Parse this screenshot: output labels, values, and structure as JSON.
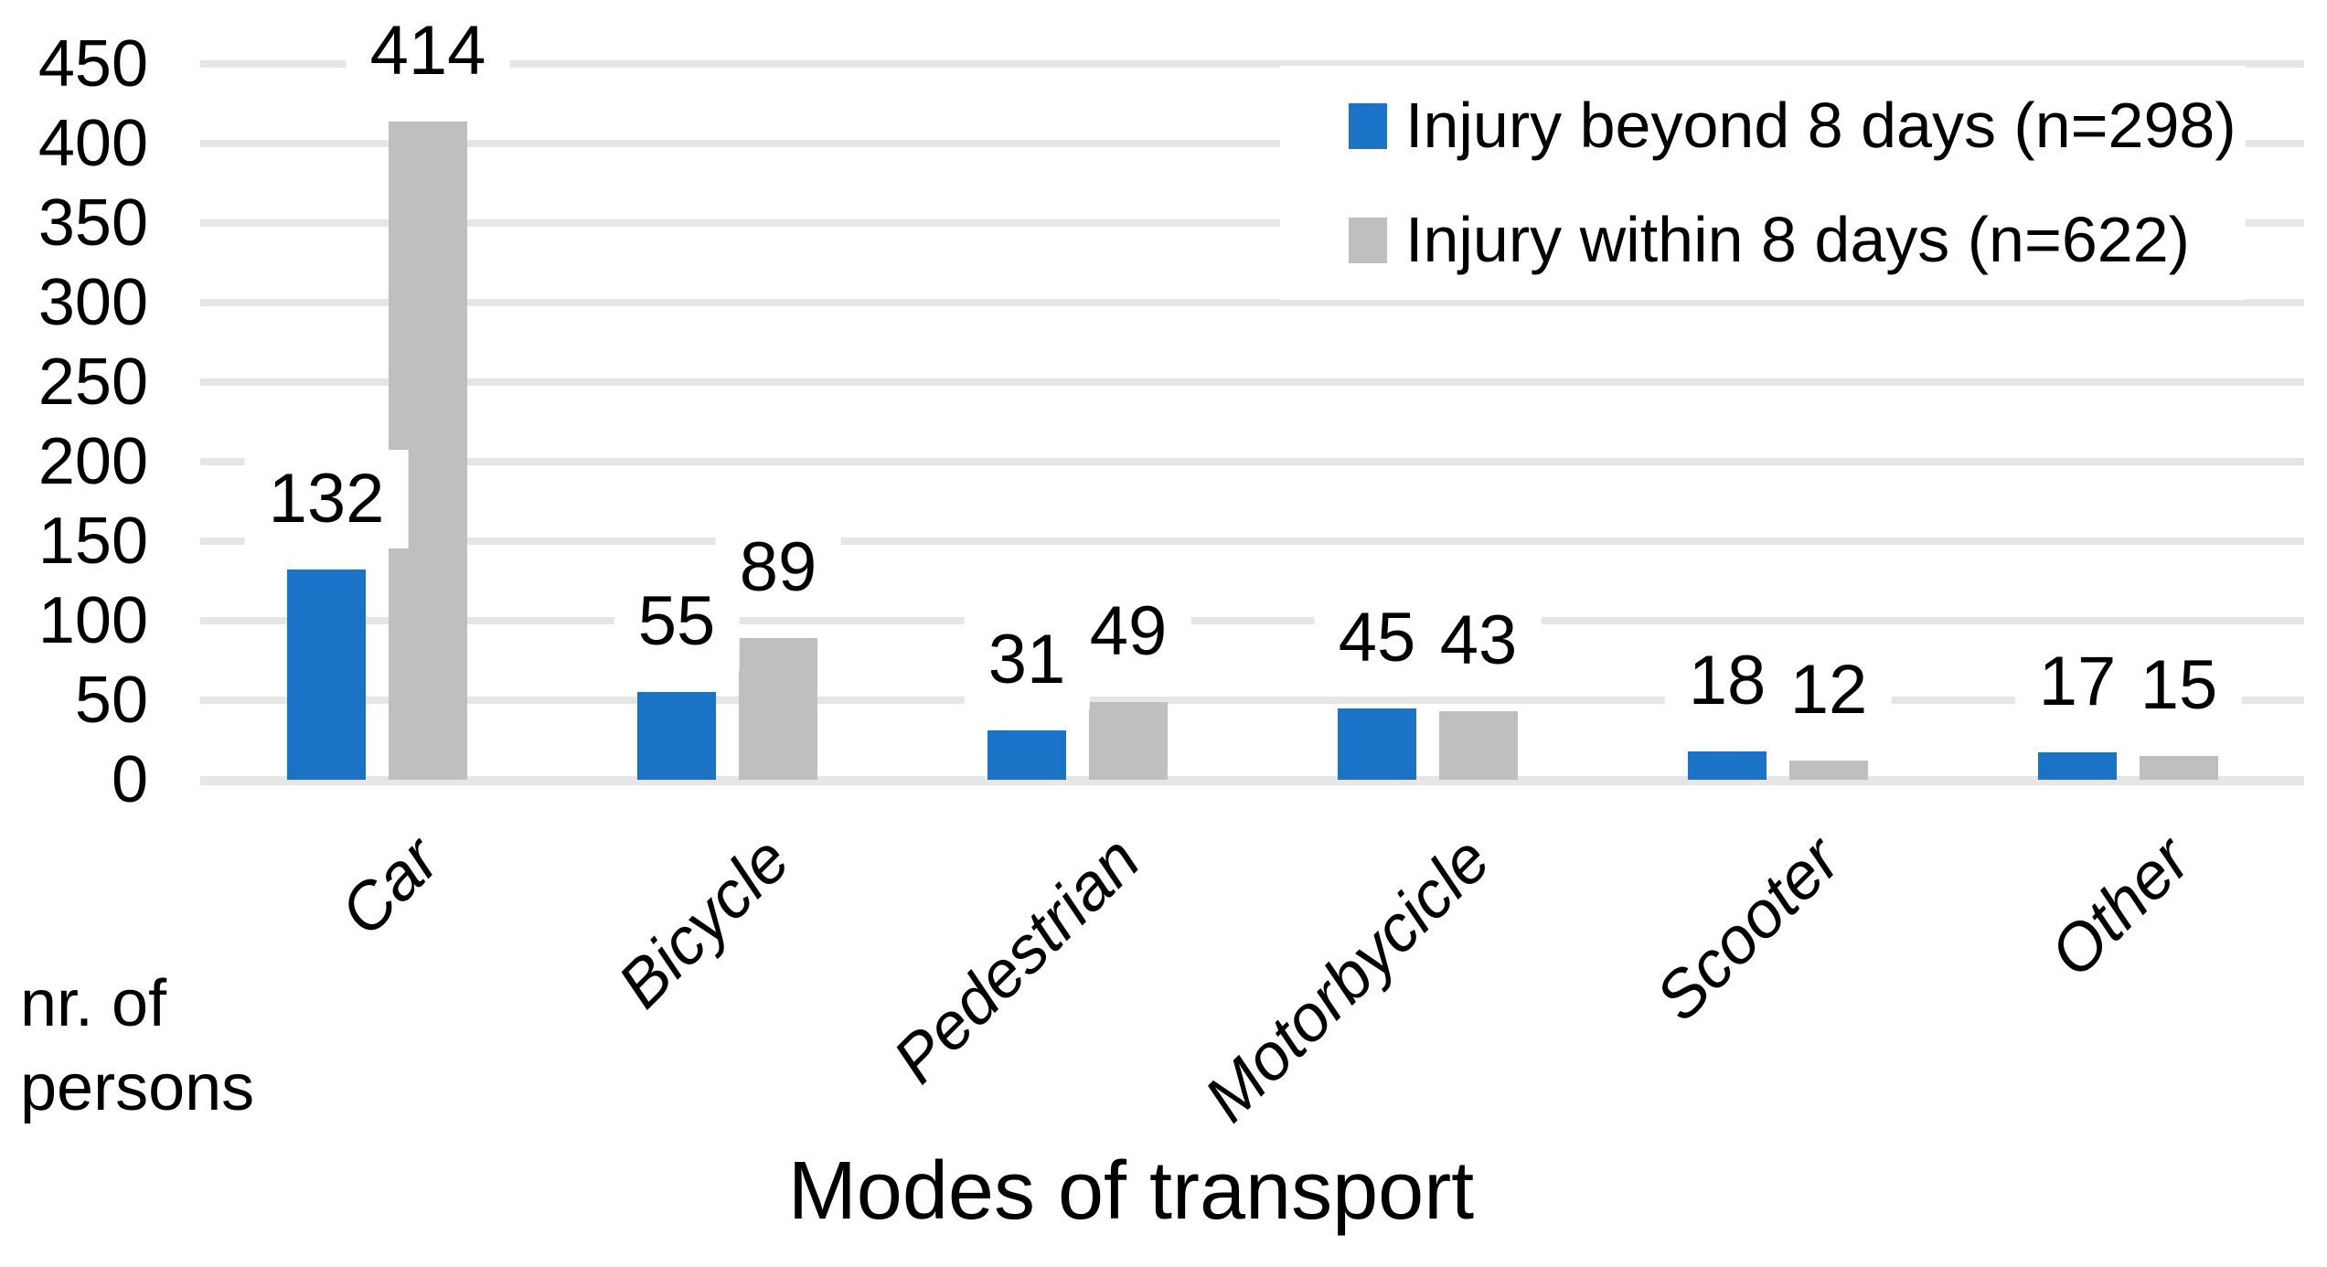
{
  "chart_data": {
    "type": "bar",
    "categories": [
      "Car",
      "Bicycle",
      "Pedestrian",
      "Motorbycicle",
      "Scooter",
      "Other"
    ],
    "series": [
      {
        "name": "Injury beyond 8 days (n=298)",
        "color": "#1b73c8",
        "values": [
          132,
          55,
          31,
          45,
          18,
          17
        ]
      },
      {
        "name": "Injury within 8 days (n=622)",
        "color": "#bfbfbf",
        "values": [
          414,
          89,
          49,
          43,
          12,
          15
        ]
      }
    ],
    "title": "",
    "xlabel": "Modes of transport",
    "ylabel": "nr. of persons",
    "ylabel_lines": [
      "nr. of",
      "persons"
    ],
    "ylim": [
      0,
      450
    ],
    "ytick_step": 50,
    "yticks": [
      0,
      50,
      100,
      150,
      200,
      250,
      300,
      350,
      400,
      450
    ],
    "grid": true,
    "gridline_color": "#e6e6e6",
    "legend_position": "top-right",
    "data_labels": true
  }
}
